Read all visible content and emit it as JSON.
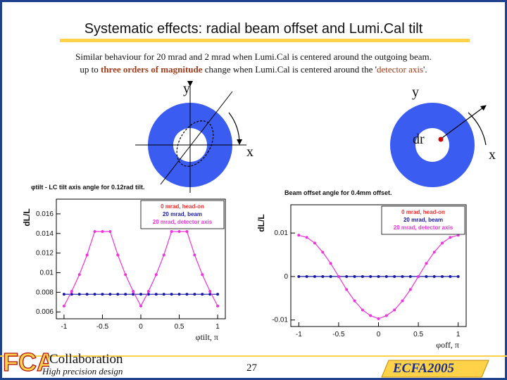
{
  "slide": {
    "title": "Systematic effects: radial beam offset and Lumi.Cal tilt",
    "line1": "Similar behaviour for 20 mrad and 2 mrad when Lumi.Cal is centered around the outgoing beam.",
    "line2_pre": "up to ",
    "line2_bold": "three orders of magnitude",
    "line2_mid": " change when Lumi.Cal is centered around the '",
    "line2_red": "detector axis",
    "line2_post": "'.",
    "page_number": "27"
  },
  "diagrams": {
    "left": {
      "y_label": "y",
      "x_label": "x"
    },
    "right": {
      "y_label": "y",
      "x_label": "x",
      "offset_label": "dr"
    }
  },
  "footer": {
    "logo_text": "FCAL",
    "collaboration": "Collaboration",
    "tagline": "High precision design",
    "conference": "ECFA",
    "conference_year": "2005"
  },
  "colors": {
    "ring": "#3a5cf0",
    "accent": "#ffd24a",
    "frame": "#1f3f8f"
  },
  "chart_data": [
    {
      "type": "line",
      "title": "φtilt - LC tilt axis angle for 0.12rad tilt.",
      "xlabel": "φtilt, π",
      "ylabel": "dL/L",
      "xlim": [
        -1.1,
        1.1
      ],
      "ylim": [
        0.0053,
        0.0175
      ],
      "xticks": [
        -1,
        -0.5,
        0,
        0.5,
        1
      ],
      "xtick_labels": [
        "-1",
        "-0.5",
        "0",
        "0.5",
        "1"
      ],
      "yticks": [
        0.006,
        0.008,
        0.01,
        0.012,
        0.014,
        0.016
      ],
      "ytick_labels": [
        "0.006",
        "0.008",
        "0.01",
        "0.012",
        "0.014",
        "0.016"
      ],
      "legend": [
        "0 mrad, head-on",
        "20 mrad, beam",
        "20 mrad, detector axis"
      ],
      "legend_position": "top-right",
      "x": [
        -1,
        -0.9,
        -0.8,
        -0.7,
        -0.6,
        -0.5,
        -0.4,
        -0.3,
        -0.2,
        -0.1,
        0,
        0.1,
        0.2,
        0.3,
        0.4,
        0.5,
        0.6,
        0.7,
        0.8,
        0.9,
        1
      ],
      "series": [
        {
          "name": "20 mrad, beam",
          "color": "#1a1aa8",
          "values": [
            0.0078,
            0.0078,
            0.0078,
            0.0078,
            0.0078,
            0.0078,
            0.0078,
            0.0078,
            0.0078,
            0.0078,
            0.0078,
            0.0078,
            0.0078,
            0.0078,
            0.0078,
            0.0078,
            0.0078,
            0.0078,
            0.0078,
            0.0078,
            0.0078
          ]
        },
        {
          "name": "20 mrad, detector axis",
          "color": "#ee33dd",
          "values": [
            0.0066,
            0.0081,
            0.0098,
            0.0118,
            0.0142,
            0.0142,
            0.0142,
            0.0118,
            0.0098,
            0.0081,
            0.0066,
            0.0081,
            0.0098,
            0.0118,
            0.0142,
            0.0142,
            0.0142,
            0.0118,
            0.0098,
            0.0081,
            0.0066
          ]
        }
      ]
    },
    {
      "type": "line",
      "title": "Beam offset angle for 0.4mm offset.",
      "xlabel": "φoff, π",
      "ylabel": "dL/L",
      "xlim": [
        -1.1,
        1.1
      ],
      "ylim": [
        -0.0115,
        0.0165
      ],
      "xticks": [
        -1,
        -0.5,
        0,
        0.5,
        1
      ],
      "xtick_labels": [
        "-1",
        "-0.5",
        "0",
        "0.5",
        "1"
      ],
      "yticks": [
        -0.01,
        0,
        0.01
      ],
      "ytick_labels": [
        "-0.01",
        "0",
        "0.01"
      ],
      "legend": [
        "0 mrad, head-on",
        "20 mrad, beam",
        "20 mrad, detector axis"
      ],
      "legend_position": "top-right",
      "x": [
        -1,
        -0.9,
        -0.8,
        -0.7,
        -0.6,
        -0.5,
        -0.4,
        -0.3,
        -0.2,
        -0.1,
        0,
        0.1,
        0.2,
        0.3,
        0.4,
        0.5,
        0.6,
        0.7,
        0.8,
        0.9,
        1
      ],
      "series": [
        {
          "name": "20 mrad, beam",
          "color": "#1a1aa8",
          "values": [
            0,
            0,
            0,
            0,
            0,
            0,
            0,
            0,
            0,
            0,
            0,
            0,
            0,
            0,
            0,
            0,
            0,
            0,
            0,
            0,
            0
          ]
        },
        {
          "name": "20 mrad, detector axis",
          "color": "#ee33dd",
          "values": [
            0.0095,
            0.009,
            0.0077,
            0.0056,
            0.003,
            0,
            -0.003,
            -0.0056,
            -0.0077,
            -0.009,
            -0.0097,
            -0.009,
            -0.0077,
            -0.0056,
            -0.003,
            0,
            0.003,
            0.0056,
            0.0077,
            0.009,
            0.0095
          ]
        }
      ]
    }
  ]
}
